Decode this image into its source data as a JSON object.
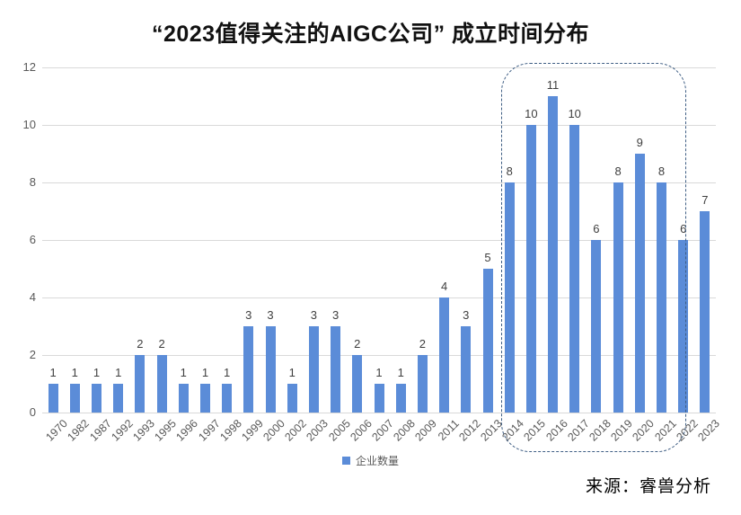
{
  "title": "“2023值得关注的AIGC公司” 成立时间分布",
  "legend": {
    "label": "企业数量"
  },
  "footer": {
    "source": "来源：睿兽分析"
  },
  "colors": {
    "bar": "#5B8CD8",
    "gridline": "#D9D9D9",
    "axis_text": "#595959",
    "data_label": "#3F3F3F",
    "highlight_border": "#3F5E84",
    "title_text": "#111111"
  },
  "chart_data": {
    "type": "bar",
    "title": "“2023值得关注的AIGC公司” 成立时间分布",
    "categories": [
      "1970",
      "1982",
      "1987",
      "1992",
      "1993",
      "1995",
      "1996",
      "1997",
      "1998",
      "1999",
      "2000",
      "2002",
      "2003",
      "2005",
      "2006",
      "2007",
      "2008",
      "2009",
      "2011",
      "2012",
      "2013",
      "2014",
      "2015",
      "2016",
      "2017",
      "2018",
      "2019",
      "2020",
      "2021",
      "2022",
      "2023"
    ],
    "values": [
      1,
      1,
      1,
      1,
      2,
      2,
      1,
      1,
      1,
      3,
      3,
      1,
      3,
      3,
      2,
      1,
      1,
      2,
      4,
      3,
      5,
      8,
      10,
      11,
      10,
      6,
      8,
      9,
      8,
      6,
      7
    ],
    "xlabel": "",
    "ylabel": "",
    "ylim": [
      0,
      12
    ],
    "yticks": [
      0,
      2,
      4,
      6,
      8,
      10,
      12
    ],
    "grid": true,
    "data_labels": true,
    "legend_entries": [
      "企业数量"
    ],
    "legend_position": "bottom",
    "highlight_region": {
      "from_category": "2014",
      "to_category": "2022",
      "style": "dashed-rounded-rect"
    },
    "source": "来源：睿兽分析"
  }
}
